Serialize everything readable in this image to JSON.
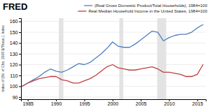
{
  "chart_data": {
    "type": "line",
    "annotations": [
      "FRED"
    ],
    "ylabel": "Index of (Bil. of Chn. 2009 $/Thous.), Index",
    "x": [
      1984,
      1985,
      1986,
      1987,
      1988,
      1989,
      1990,
      1991,
      1992,
      1993,
      1994,
      1995,
      1996,
      1997,
      1998,
      1999,
      2000,
      2001,
      2002,
      2003,
      2004,
      2005,
      2006,
      2007,
      2008,
      2009,
      2010,
      2011,
      2012,
      2013,
      2014,
      2015,
      2016
    ],
    "series": [
      {
        "name": "(Real Gross Domestic Product/Total Households), 1984=100",
        "color": "#4f7fbf",
        "values": [
          100,
          103,
          106,
          109,
          113,
          116,
          114,
          113,
          115,
          118,
          121,
          120,
          122,
          126,
          130,
          135,
          141,
          137,
          136,
          136,
          139,
          143,
          147,
          151,
          150,
          142,
          145,
          147,
          148,
          148,
          150,
          154,
          157
        ]
      },
      {
        "name": "Real Median Household Income in the United States, 1984=100",
        "color": "#bf4040",
        "values": [
          100,
          103,
          105,
          107,
          108,
          109,
          109,
          106,
          105,
          103,
          103,
          105,
          107,
          110,
          114,
          118,
          120,
          117,
          116,
          115,
          115,
          116,
          117,
          118,
          116,
          113,
          113,
          112,
          111,
          109,
          109,
          111,
          120
        ]
      }
    ],
    "shaded_ranges": [
      [
        1990.5,
        1991.3
      ],
      [
        2001.2,
        2001.9
      ],
      [
        2007.9,
        2009.5
      ]
    ],
    "xlim": [
      1983.8,
      2016.5
    ],
    "xticks": [
      1985,
      1990,
      1995,
      2000,
      2005,
      2010,
      2015
    ],
    "ylim": [
      88,
      163
    ],
    "yticks": [
      90,
      100,
      110,
      120,
      130,
      140,
      150,
      160
    ],
    "grid": true,
    "legend": "top-right"
  }
}
